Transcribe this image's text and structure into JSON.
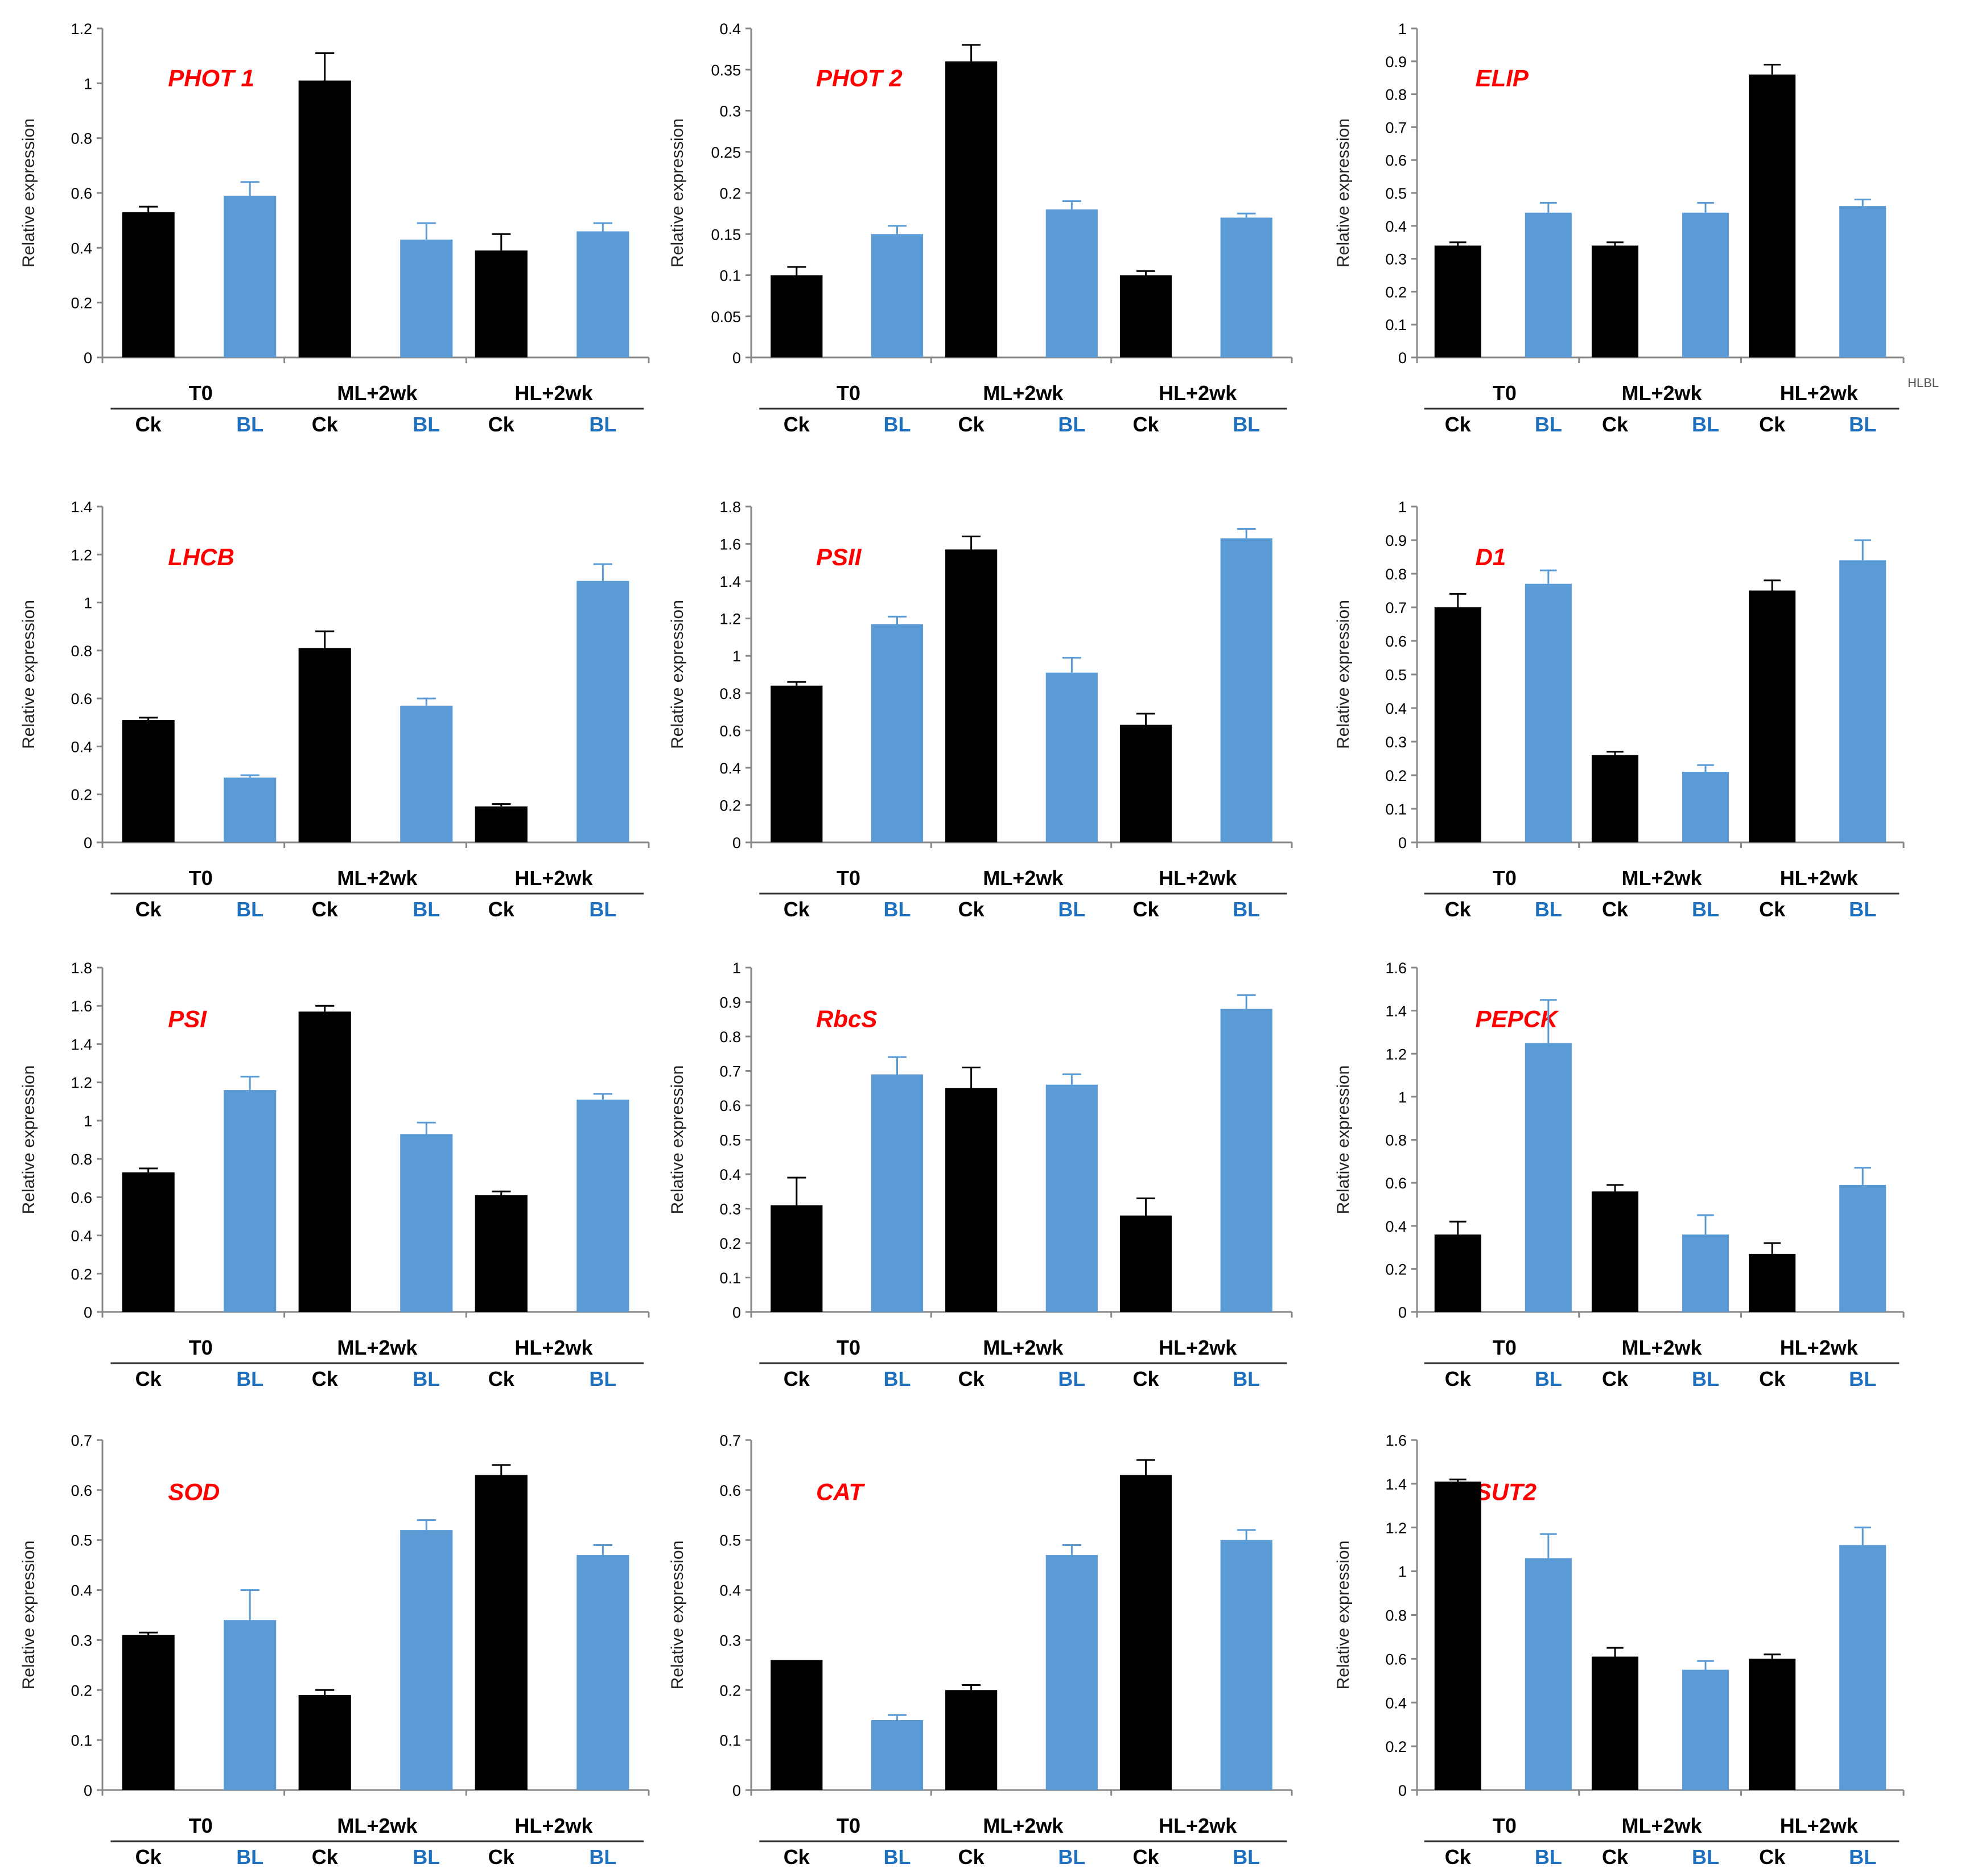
{
  "colors": {
    "ck": "#000000",
    "bl": "#5b9bd5",
    "title": "#ff0000",
    "bl_label": "#1f6fbf",
    "axis": "#888888"
  },
  "groups": [
    "T0",
    "ML+2wk",
    "HL+2wk"
  ],
  "series_names": [
    "Ck",
    "BL"
  ],
  "stray_labels": {
    "elip_corner": "HLBL"
  },
  "chart_data": [
    {
      "type": "bar",
      "title": "PHOT 1",
      "ylabel": "Relative expression",
      "ylim": [
        0,
        1.2
      ],
      "step": 0.2,
      "ticks": [
        "0",
        "0.2",
        "0.4",
        "0.6",
        "0.8",
        "1",
        "1.2"
      ],
      "categories": [
        "T0",
        "ML+2wk",
        "HL+2wk"
      ],
      "series": [
        {
          "name": "Ck",
          "values": [
            0.53,
            1.01,
            0.39
          ],
          "errors": [
            0.02,
            0.1,
            0.06
          ]
        },
        {
          "name": "BL",
          "values": [
            0.59,
            0.43,
            0.46
          ],
          "errors": [
            0.05,
            0.06,
            0.03
          ]
        }
      ]
    },
    {
      "type": "bar",
      "title": "PHOT 2",
      "ylabel": "Relative expression",
      "ylim": [
        0,
        0.4
      ],
      "step": 0.05,
      "ticks": [
        "0",
        "0.05",
        "0.1",
        "0.15",
        "0.2",
        "0.25",
        "0.3",
        "0.35",
        "0.4"
      ],
      "categories": [
        "T0",
        "ML+2wk",
        "HL+2wk"
      ],
      "series": [
        {
          "name": "Ck",
          "values": [
            0.1,
            0.36,
            0.1
          ],
          "errors": [
            0.01,
            0.02,
            0.005
          ]
        },
        {
          "name": "BL",
          "values": [
            0.15,
            0.18,
            0.17
          ],
          "errors": [
            0.01,
            0.01,
            0.005
          ]
        }
      ]
    },
    {
      "type": "bar",
      "title": "ELIP",
      "ylabel": "Relative expression",
      "ylim": [
        0,
        1
      ],
      "step": 0.1,
      "ticks": [
        "0",
        "0.1",
        "0.2",
        "0.3",
        "0.4",
        "0.5",
        "0.6",
        "0.7",
        "0.8",
        "0.9",
        "1"
      ],
      "categories": [
        "T0",
        "ML+2wk",
        "HL+2wk"
      ],
      "series": [
        {
          "name": "Ck",
          "values": [
            0.34,
            0.34,
            0.86
          ],
          "errors": [
            0.01,
            0.01,
            0.03
          ]
        },
        {
          "name": "BL",
          "values": [
            0.44,
            0.44,
            0.46
          ],
          "errors": [
            0.03,
            0.03,
            0.02
          ]
        }
      ]
    },
    {
      "type": "bar",
      "title": "LHCB",
      "ylabel": "Relative expression",
      "ylim": [
        0,
        1.4
      ],
      "step": 0.2,
      "ticks": [
        "0",
        "0.2",
        "0.4",
        "0.6",
        "0.8",
        "1",
        "1.2",
        "1.4"
      ],
      "categories": [
        "T0",
        "ML+2wk",
        "HL+2wk"
      ],
      "series": [
        {
          "name": "Ck",
          "values": [
            0.51,
            0.81,
            0.15
          ],
          "errors": [
            0.01,
            0.07,
            0.01
          ]
        },
        {
          "name": "BL",
          "values": [
            0.27,
            0.57,
            1.09
          ],
          "errors": [
            0.01,
            0.03,
            0.07
          ]
        }
      ]
    },
    {
      "type": "bar",
      "title": "PSII",
      "ylabel": "Relative expression",
      "ylim": [
        0,
        1.8
      ],
      "step": 0.2,
      "ticks": [
        "0",
        "0.2",
        "0.4",
        "0.6",
        "0.8",
        "1",
        "1.2",
        "1.4",
        "1.6",
        "1.8"
      ],
      "categories": [
        "T0",
        "ML+2wk",
        "HL+2wk"
      ],
      "series": [
        {
          "name": "Ck",
          "values": [
            0.84,
            1.57,
            0.63
          ],
          "errors": [
            0.02,
            0.07,
            0.06
          ]
        },
        {
          "name": "BL",
          "values": [
            1.17,
            0.91,
            1.63
          ],
          "errors": [
            0.04,
            0.08,
            0.05
          ]
        }
      ]
    },
    {
      "type": "bar",
      "title": "D1",
      "ylabel": "Relative expression",
      "ylim": [
        0,
        1
      ],
      "step": 0.1,
      "ticks": [
        "0",
        "0.1",
        "0.2",
        "0.3",
        "0.4",
        "0.5",
        "0.6",
        "0.7",
        "0.8",
        "0.9",
        "1"
      ],
      "categories": [
        "T0",
        "ML+2wk",
        "HL+2wk"
      ],
      "series": [
        {
          "name": "Ck",
          "values": [
            0.7,
            0.26,
            0.75
          ],
          "errors": [
            0.04,
            0.01,
            0.03
          ]
        },
        {
          "name": "BL",
          "values": [
            0.77,
            0.21,
            0.84
          ],
          "errors": [
            0.04,
            0.02,
            0.06
          ]
        }
      ]
    },
    {
      "type": "bar",
      "title": "PSI",
      "ylabel": "Relative expression",
      "ylim": [
        0,
        1.8
      ],
      "step": 0.2,
      "ticks": [
        "0",
        "0.2",
        "0.4",
        "0.6",
        "0.8",
        "1",
        "1.2",
        "1.4",
        "1.6",
        "1.8"
      ],
      "categories": [
        "T0",
        "ML+2wk",
        "HL+2wk"
      ],
      "series": [
        {
          "name": "Ck",
          "values": [
            0.73,
            1.57,
            0.61
          ],
          "errors": [
            0.02,
            0.03,
            0.02
          ]
        },
        {
          "name": "BL",
          "values": [
            1.16,
            0.93,
            1.11
          ],
          "errors": [
            0.07,
            0.06,
            0.03
          ]
        }
      ]
    },
    {
      "type": "bar",
      "title": "RbcS",
      "ylabel": "Relative expression",
      "ylim": [
        0,
        1
      ],
      "step": 0.1,
      "ticks": [
        "0",
        "0.1",
        "0.2",
        "0.3",
        "0.4",
        "0.5",
        "0.6",
        "0.7",
        "0.8",
        "0.9",
        "1"
      ],
      "categories": [
        "T0",
        "ML+2wk",
        "HL+2wk"
      ],
      "series": [
        {
          "name": "Ck",
          "values": [
            0.31,
            0.65,
            0.28
          ],
          "errors": [
            0.08,
            0.06,
            0.05
          ]
        },
        {
          "name": "BL",
          "values": [
            0.69,
            0.66,
            0.88
          ],
          "errors": [
            0.05,
            0.03,
            0.04
          ]
        }
      ]
    },
    {
      "type": "bar",
      "title": "PEPCK",
      "ylabel": "Relative expression",
      "ylim": [
        0,
        1.6
      ],
      "step": 0.2,
      "ticks": [
        "0",
        "0.2",
        "0.4",
        "0.6",
        "0.8",
        "1",
        "1.2",
        "1.4",
        "1.6"
      ],
      "categories": [
        "T0",
        "ML+2wk",
        "HL+2wk"
      ],
      "series": [
        {
          "name": "Ck",
          "values": [
            0.36,
            0.56,
            0.27
          ],
          "errors": [
            0.06,
            0.03,
            0.05
          ]
        },
        {
          "name": "BL",
          "values": [
            1.25,
            0.36,
            0.59
          ],
          "errors": [
            0.2,
            0.09,
            0.08
          ]
        }
      ]
    },
    {
      "type": "bar",
      "title": "SOD",
      "ylabel": "Relative expression",
      "ylim": [
        0,
        0.7
      ],
      "step": 0.1,
      "ticks": [
        "0",
        "0.1",
        "0.2",
        "0.3",
        "0.4",
        "0.5",
        "0.6",
        "0.7"
      ],
      "categories": [
        "T0",
        "ML+2wk",
        "HL+2wk"
      ],
      "series": [
        {
          "name": "Ck",
          "values": [
            0.31,
            0.19,
            0.63
          ],
          "errors": [
            0.005,
            0.01,
            0.02
          ]
        },
        {
          "name": "BL",
          "values": [
            0.34,
            0.52,
            0.47
          ],
          "errors": [
            0.06,
            0.02,
            0.02
          ]
        }
      ]
    },
    {
      "type": "bar",
      "title": "CAT",
      "ylabel": "Relative expression",
      "ylim": [
        0,
        0.7
      ],
      "step": 0.1,
      "ticks": [
        "0",
        "0.1",
        "0.2",
        "0.3",
        "0.4",
        "0.5",
        "0.6",
        "0.7"
      ],
      "categories": [
        "T0",
        "ML+2wk",
        "HL+2wk"
      ],
      "series": [
        {
          "name": "Ck",
          "values": [
            0.26,
            0.2,
            0.63
          ],
          "errors": [
            0.0,
            0.01,
            0.03
          ]
        },
        {
          "name": "BL",
          "values": [
            0.14,
            0.47,
            0.5
          ],
          "errors": [
            0.01,
            0.02,
            0.02
          ]
        }
      ]
    },
    {
      "type": "bar",
      "title": "SUT2",
      "ylabel": "Relative expression",
      "ylim": [
        0,
        1.6
      ],
      "step": 0.2,
      "ticks": [
        "0",
        "0.2",
        "0.4",
        "0.6",
        "0.8",
        "1",
        "1.2",
        "1.4",
        "1.6"
      ],
      "categories": [
        "T0",
        "ML+2wk",
        "HL+2wk"
      ],
      "series": [
        {
          "name": "Ck",
          "values": [
            1.41,
            0.61,
            0.6
          ],
          "errors": [
            0.01,
            0.04,
            0.02
          ]
        },
        {
          "name": "BL",
          "values": [
            1.06,
            0.55,
            1.12
          ],
          "errors": [
            0.11,
            0.04,
            0.08
          ]
        }
      ]
    }
  ]
}
